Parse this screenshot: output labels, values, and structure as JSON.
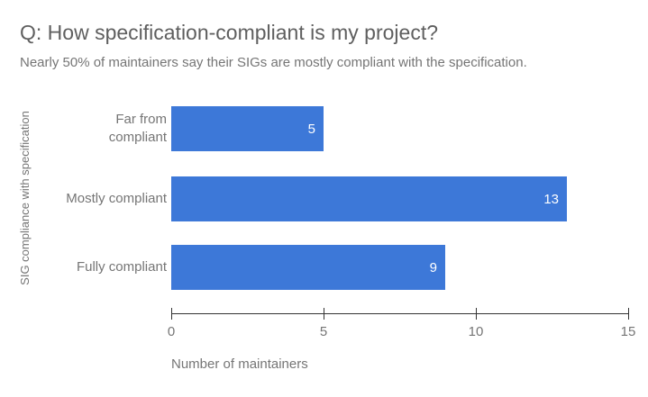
{
  "page": {
    "background": "#ffffff"
  },
  "header": {
    "title": "Q: How specification-compliant is my project?",
    "subtitle": "Nearly 50% of maintainers say their SIGs are mostly compliant with the specification."
  },
  "chart_data": {
    "type": "bar",
    "orientation": "horizontal",
    "title": "Q: How specification-compliant is my project?",
    "subtitle": "Nearly 50% of maintainers say their SIGs are mostly compliant with the specification.",
    "categories": [
      "Far from compliant",
      "Mostly compliant",
      "Fully compliant"
    ],
    "category_display": [
      "Far from\ncompliant",
      "Mostly compliant",
      "Fully compliant"
    ],
    "values": [
      5,
      13,
      9
    ],
    "xlabel": "Number of maintainers",
    "ylabel": "SIG compliance with specification",
    "xlim": [
      0,
      15
    ],
    "xticks": [
      "0",
      "5",
      "10",
      "15"
    ],
    "grid": false,
    "legend": "none",
    "value_label_position": "inside-end",
    "colors": {
      "bar": "#3d78d8",
      "value_label": "#ffffff",
      "axis_line": "#333333",
      "tick_label": "#757575",
      "category_label": "#757575",
      "title": "#5f5f5f",
      "subtitle": "#757575"
    }
  }
}
